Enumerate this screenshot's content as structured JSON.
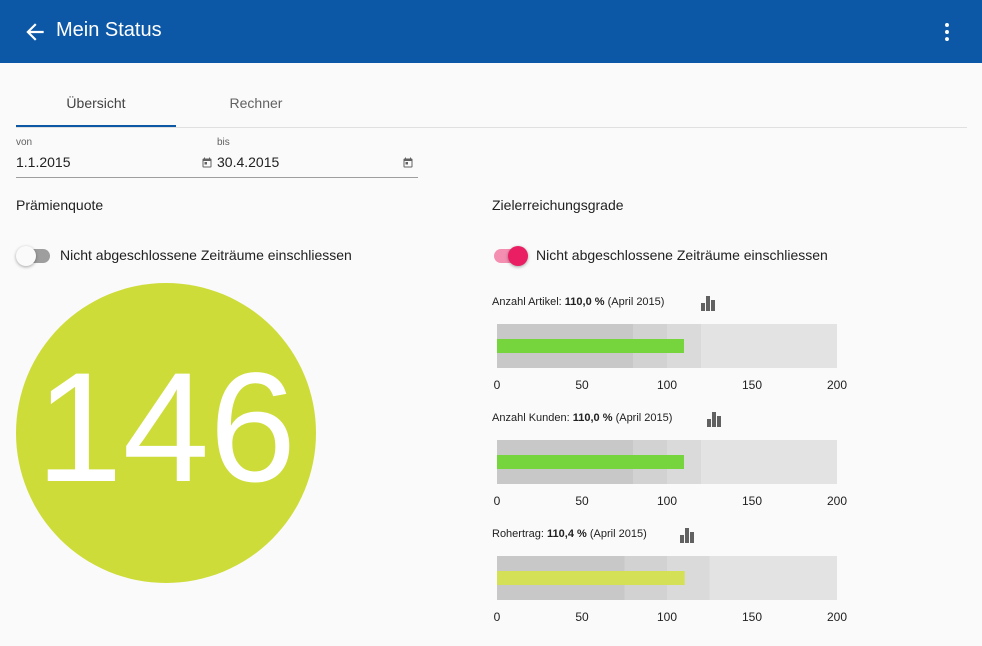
{
  "appbar": {
    "title": "Mein Status",
    "back_icon": "arrow-left-icon",
    "menu_icon": "more-vert-icon",
    "color": "#0d57a7"
  },
  "tabs": [
    {
      "label": "Übersicht",
      "active": true
    },
    {
      "label": "Rechner",
      "active": false
    }
  ],
  "date_range": {
    "from": {
      "label": "von",
      "value": "1.1.2015"
    },
    "to": {
      "label": "bis",
      "value": "30.4.2015"
    }
  },
  "praemienquote": {
    "title": "Prämienquote",
    "toggle_label": "Nicht abgeschlossene Zeiträume einschliessen",
    "toggle_on": false,
    "value": "146",
    "color": "#cddc39"
  },
  "zielerreichung": {
    "title": "Zielerreichungsgrade",
    "toggle_label": "Nicht abgeschlossene Zeiträume einschliessen",
    "toggle_on": true,
    "kpis": [
      {
        "name": "Anzahl Artikel:",
        "value_text": "110,0 %",
        "period": "(April 2015)",
        "value": 110,
        "ranges": [
          80,
          100,
          120,
          200
        ],
        "bar_color": "#76d43c"
      },
      {
        "name": "Anzahl Kunden:",
        "value_text": "110,0 %",
        "period": "(April 2015)",
        "value": 110,
        "ranges": [
          80,
          100,
          120,
          200
        ],
        "bar_color": "#76d43c"
      },
      {
        "name": "Rohertrag:",
        "value_text": "110,4 %",
        "period": "(April 2015)",
        "value": 110.4,
        "ranges": [
          75,
          100,
          125,
          200
        ],
        "bar_color": "#d4e157"
      }
    ],
    "axis_ticks": [
      "0",
      "50",
      "100",
      "150",
      "200"
    ],
    "axis_max": 200
  }
}
